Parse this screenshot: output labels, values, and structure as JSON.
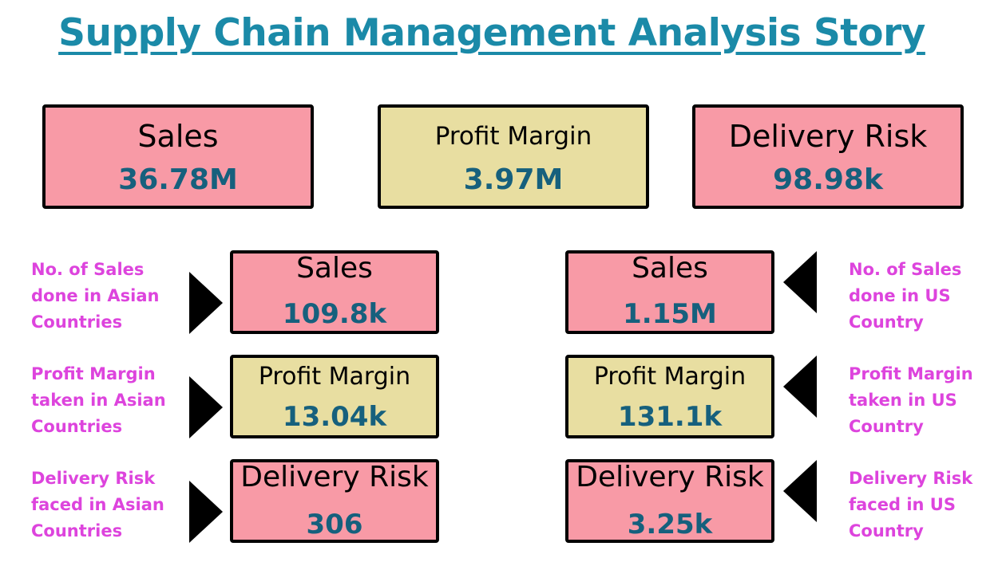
{
  "title": "Supply Chain Management Analysis Story",
  "kpis": {
    "sales": {
      "label": "Sales",
      "value": "36.78M"
    },
    "profit_margin": {
      "label": "Profit Margin",
      "value": "3.97M"
    },
    "delivery_risk": {
      "label": "Delivery Risk",
      "value": "98.98k"
    }
  },
  "asia": {
    "sales": {
      "label": "Sales",
      "value": "109.8k",
      "note": "No. of Sales done in Asian Countries"
    },
    "profit_margin": {
      "label": "Profit Margin",
      "value": "13.04k",
      "note": "Profit Margin taken in Asian Countries"
    },
    "delivery_risk": {
      "label": "Delivery Risk",
      "value": "306",
      "note": "Delivery Risk faced in Asian Countries"
    }
  },
  "us": {
    "sales": {
      "label": "Sales",
      "value": "1.15M",
      "note": "No. of Sales done in US Country"
    },
    "profit_margin": {
      "label": "Profit Margin",
      "value": "131.1k",
      "note": "Profit Margin taken in US Country"
    },
    "delivery_risk": {
      "label": "Delivery Risk",
      "value": "3.25k",
      "note": "Delivery Risk faced in US Country"
    }
  },
  "colors": {
    "title": "#1b8aa8",
    "value_text": "#16607d",
    "pink_card": "#f89aa6",
    "tan_card": "#e8dea1",
    "annotation": "#dd44dd"
  },
  "icons": {
    "left_pointers": "right-triangle-arrow",
    "right_pointers": "left-triangle-arrow"
  }
}
